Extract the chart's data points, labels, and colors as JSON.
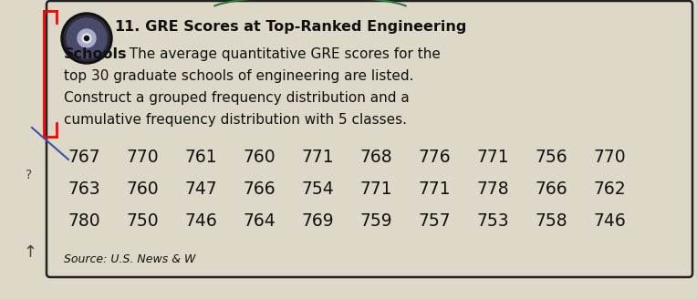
{
  "bg_color": "#ddd8c8",
  "text_color": "#111111",
  "border_color": "#222222",
  "title_num": "11.",
  "title_rest": "  GRE Scores at Top-Ranked Engineering",
  "schools_bold": "Schools",
  "schools_rest": "  The average quantitative GRE scores for the",
  "line3": "top 30 graduate schools of engineering are listed.",
  "line4": "Construct a grouped frequency distribution and a",
  "line5": "cumulative frequency distribution with 5 classes.",
  "row1_nums": [
    767,
    770,
    761,
    760,
    771,
    768,
    776,
    771,
    756,
    770
  ],
  "row2_nums": [
    763,
    760,
    747,
    766,
    754,
    771,
    771,
    778,
    766,
    762
  ],
  "row3_nums": [
    780,
    750,
    746,
    764,
    769,
    759,
    757,
    753,
    758,
    746
  ],
  "source": "Source: U.S. News & W",
  "title_fontsize": 11.5,
  "body_fontsize": 11.0,
  "data_fontsize": 13.5,
  "source_fontsize": 9.0,
  "symbol_fontsize": 10.0
}
